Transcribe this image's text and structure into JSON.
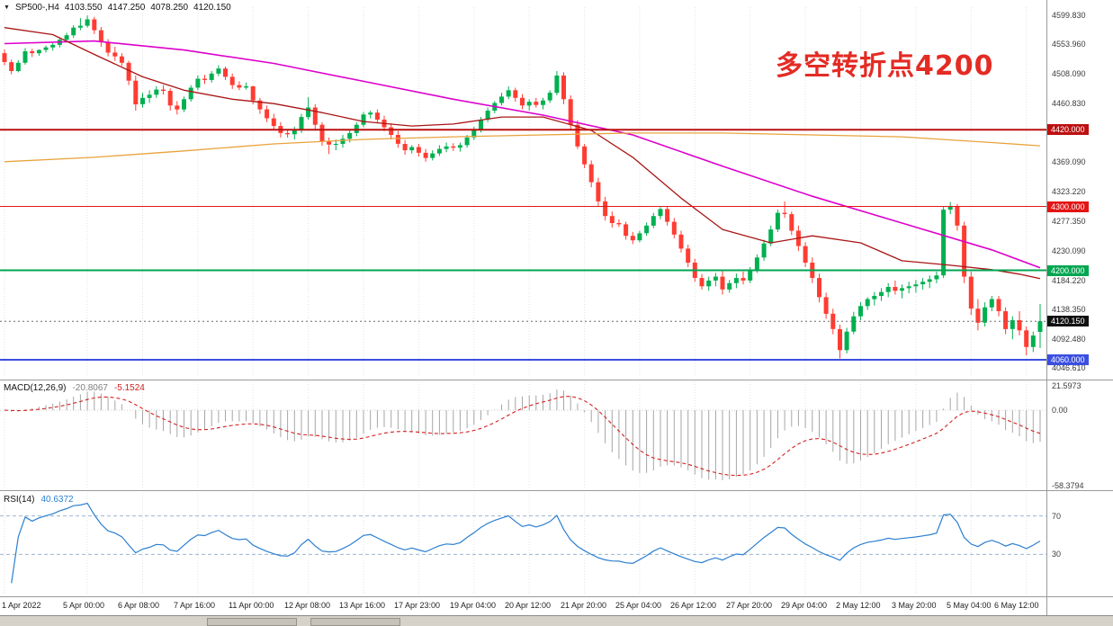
{
  "header": {
    "dropdown_icon": "▼",
    "symbol": "SP500-,H4",
    "open": "4103.550",
    "high": "4147.250",
    "low": "4078.250",
    "close": "4120.150"
  },
  "annotation": {
    "text": "多空转折点4200",
    "color": "#e32b24"
  },
  "colors": {
    "candle_up": "#00b050",
    "candle_down": "#ff3c32",
    "macd_hist": "#a6a6a6",
    "macd_signal": "#d22020",
    "rsi_line": "#2b7fd0",
    "rsi_level": "#9db4cf",
    "grid": "#e3e3e3",
    "current_price_line": "#6a6a6a"
  },
  "price_axis": {
    "ticks": [
      "4599.830",
      "4553.960",
      "4508.090",
      "4460.830",
      "4369.090",
      "4323.220",
      "4277.350",
      "4230.090",
      "4184.220",
      "4138.350",
      "4092.480",
      "4046.610"
    ],
    "current": {
      "label": "4120.150",
      "bg": "#101010"
    }
  },
  "panels": {
    "macd": {
      "title": "MACD(12,26,9)",
      "value_main": "-20.8067",
      "value_signal": "-5.1524",
      "axis_top": "21.5973",
      "axis_zero": "0.00",
      "axis_bottom": "-58.3794"
    },
    "rsi": {
      "title": "RSI(14)",
      "value": "40.6372",
      "level_labels": [
        "70",
        "30"
      ]
    }
  },
  "chart_data": {
    "type": "candlestick",
    "symbol": "SP500",
    "timeframe": "H4",
    "title": "SP500-,H4",
    "last_ohlc": {
      "open": 4103.55,
      "high": 4147.25,
      "low": 4078.25,
      "close": 4120.15
    },
    "price_range": [
      4036,
      4612
    ],
    "current_price": 4120.15,
    "candles": [
      [
        4540,
        4546,
        4521,
        4526
      ],
      [
        4526,
        4530,
        4507,
        4512
      ],
      [
        4512,
        4529,
        4510,
        4525
      ],
      [
        4525,
        4548,
        4522,
        4543
      ],
      [
        4543,
        4547,
        4534,
        4540
      ],
      [
        4540,
        4546,
        4536,
        4545
      ],
      [
        4545,
        4552,
        4541,
        4549
      ],
      [
        4549,
        4556,
        4544,
        4553
      ],
      [
        4553,
        4565,
        4549,
        4561
      ],
      [
        4561,
        4572,
        4557,
        4568
      ],
      [
        4568,
        4584,
        4564,
        4580
      ],
      [
        4580,
        4595,
        4576,
        4583
      ],
      [
        4583,
        4599,
        4580,
        4593
      ],
      [
        4593,
        4597,
        4570,
        4576
      ],
      [
        4576,
        4581,
        4550,
        4557
      ],
      [
        4557,
        4562,
        4535,
        4541
      ],
      [
        4541,
        4550,
        4528,
        4535
      ],
      [
        4535,
        4540,
        4520,
        4525
      ],
      [
        4525,
        4528,
        4490,
        4497
      ],
      [
        4497,
        4505,
        4450,
        4460
      ],
      [
        4460,
        4478,
        4455,
        4470
      ],
      [
        4470,
        4482,
        4462,
        4475
      ],
      [
        4475,
        4488,
        4470,
        4483
      ],
      [
        4483,
        4490,
        4475,
        4481
      ],
      [
        4481,
        4485,
        4450,
        4458
      ],
      [
        4458,
        4465,
        4444,
        4452
      ],
      [
        4452,
        4472,
        4448,
        4468
      ],
      [
        4468,
        4490,
        4464,
        4486
      ],
      [
        4486,
        4505,
        4482,
        4500
      ],
      [
        4500,
        4506,
        4492,
        4498
      ],
      [
        4498,
        4512,
        4494,
        4508
      ],
      [
        4508,
        4521,
        4504,
        4516
      ],
      [
        4516,
        4519,
        4498,
        4503
      ],
      [
        4503,
        4508,
        4484,
        4490
      ],
      [
        4490,
        4496,
        4482,
        4486
      ],
      [
        4486,
        4494,
        4483,
        4488
      ],
      [
        4488,
        4489,
        4460,
        4466
      ],
      [
        4466,
        4470,
        4445,
        4452
      ],
      [
        4452,
        4458,
        4432,
        4438
      ],
      [
        4438,
        4445,
        4420,
        4426
      ],
      [
        4426,
        4432,
        4408,
        4415
      ],
      [
        4415,
        4420,
        4408,
        4413
      ],
      [
        4413,
        4425,
        4405,
        4420
      ],
      [
        4420,
        4445,
        4415,
        4440
      ],
      [
        4440,
        4471,
        4436,
        4455
      ],
      [
        4455,
        4460,
        4420,
        4428
      ],
      [
        4428,
        4432,
        4395,
        4402
      ],
      [
        4402,
        4408,
        4382,
        4397
      ],
      [
        4397,
        4405,
        4388,
        4398
      ],
      [
        4398,
        4412,
        4392,
        4406
      ],
      [
        4406,
        4420,
        4400,
        4415
      ],
      [
        4415,
        4432,
        4410,
        4428
      ],
      [
        4428,
        4448,
        4424,
        4444
      ],
      [
        4444,
        4450,
        4438,
        4447
      ],
      [
        4447,
        4452,
        4430,
        4436
      ],
      [
        4436,
        4442,
        4418,
        4424
      ],
      [
        4424,
        4430,
        4405,
        4412
      ],
      [
        4412,
        4418,
        4392,
        4398
      ],
      [
        4398,
        4404,
        4381,
        4388
      ],
      [
        4388,
        4396,
        4383,
        4393
      ],
      [
        4393,
        4398,
        4378,
        4384
      ],
      [
        4384,
        4390,
        4370,
        4376
      ],
      [
        4376,
        4388,
        4372,
        4383
      ],
      [
        4383,
        4396,
        4379,
        4390
      ],
      [
        4390,
        4400,
        4385,
        4394
      ],
      [
        4394,
        4399,
        4387,
        4392
      ],
      [
        4392,
        4400,
        4386,
        4396
      ],
      [
        4396,
        4412,
        4392,
        4408
      ],
      [
        4408,
        4425,
        4404,
        4420
      ],
      [
        4420,
        4440,
        4416,
        4436
      ],
      [
        4436,
        4455,
        4432,
        4450
      ],
      [
        4450,
        4465,
        4446,
        4462
      ],
      [
        4462,
        4478,
        4458,
        4472
      ],
      [
        4472,
        4488,
        4468,
        4482
      ],
      [
        4482,
        4486,
        4464,
        4470
      ],
      [
        4470,
        4476,
        4452,
        4458
      ],
      [
        4458,
        4468,
        4450,
        4464
      ],
      [
        4464,
        4470,
        4455,
        4459
      ],
      [
        4459,
        4470,
        4452,
        4466
      ],
      [
        4466,
        4482,
        4462,
        4478
      ],
      [
        4478,
        4512,
        4474,
        4505
      ],
      [
        4505,
        4510,
        4460,
        4468
      ],
      [
        4468,
        4474,
        4420,
        4428
      ],
      [
        4428,
        4435,
        4390,
        4394
      ],
      [
        4394,
        4398,
        4360,
        4366
      ],
      [
        4366,
        4372,
        4330,
        4338
      ],
      [
        4338,
        4345,
        4300,
        4308
      ],
      [
        4308,
        4315,
        4278,
        4285
      ],
      [
        4285,
        4292,
        4267,
        4274
      ],
      [
        4274,
        4280,
        4268,
        4272
      ],
      [
        4272,
        4276,
        4248,
        4254
      ],
      [
        4254,
        4260,
        4241,
        4247
      ],
      [
        4247,
        4262,
        4244,
        4258
      ],
      [
        4258,
        4275,
        4254,
        4270
      ],
      [
        4270,
        4290,
        4266,
        4285
      ],
      [
        4285,
        4299,
        4280,
        4296
      ],
      [
        4296,
        4300,
        4270,
        4276
      ],
      [
        4276,
        4282,
        4250,
        4256
      ],
      [
        4256,
        4262,
        4228,
        4234
      ],
      [
        4234,
        4240,
        4205,
        4212
      ],
      [
        4212,
        4218,
        4182,
        4188
      ],
      [
        4188,
        4194,
        4170,
        4175
      ],
      [
        4175,
        4190,
        4168,
        4184
      ],
      [
        4184,
        4196,
        4175,
        4190
      ],
      [
        4190,
        4200,
        4162,
        4170
      ],
      [
        4170,
        4185,
        4165,
        4180
      ],
      [
        4180,
        4195,
        4172,
        4188
      ],
      [
        4188,
        4198,
        4178,
        4184
      ],
      [
        4184,
        4205,
        4180,
        4200
      ],
      [
        4200,
        4225,
        4196,
        4220
      ],
      [
        4220,
        4248,
        4215,
        4242
      ],
      [
        4242,
        4270,
        4238,
        4264
      ],
      [
        4264,
        4295,
        4260,
        4290
      ],
      [
        4290,
        4308,
        4282,
        4288
      ],
      [
        4288,
        4292,
        4255,
        4262
      ],
      [
        4262,
        4270,
        4230,
        4238
      ],
      [
        4238,
        4244,
        4205,
        4212
      ],
      [
        4212,
        4220,
        4180,
        4188
      ],
      [
        4188,
        4195,
        4150,
        4158
      ],
      [
        4158,
        4165,
        4124,
        4132
      ],
      [
        4132,
        4140,
        4100,
        4108
      ],
      [
        4108,
        4115,
        4062,
        4075
      ],
      [
        4075,
        4110,
        4070,
        4104
      ],
      [
        4104,
        4135,
        4100,
        4128
      ],
      [
        4128,
        4150,
        4122,
        4144
      ],
      [
        4144,
        4158,
        4138,
        4155
      ],
      [
        4155,
        4166,
        4145,
        4160
      ],
      [
        4160,
        4172,
        4152,
        4166
      ],
      [
        4166,
        4180,
        4158,
        4174
      ],
      [
        4174,
        4184,
        4162,
        4168
      ],
      [
        4168,
        4178,
        4156,
        4172
      ],
      [
        4172,
        4182,
        4164,
        4175
      ],
      [
        4175,
        4185,
        4165,
        4178
      ],
      [
        4178,
        4188,
        4170,
        4182
      ],
      [
        4182,
        4192,
        4172,
        4186
      ],
      [
        4186,
        4198,
        4180,
        4192
      ],
      [
        4192,
        4300,
        4188,
        4295
      ],
      [
        4295,
        4307,
        4288,
        4300
      ],
      [
        4300,
        4304,
        4262,
        4270
      ],
      [
        4270,
        4276,
        4180,
        4190
      ],
      [
        4190,
        4198,
        4130,
        4140
      ],
      [
        4140,
        4155,
        4106,
        4118
      ],
      [
        4118,
        4150,
        4112,
        4142
      ],
      [
        4142,
        4160,
        4136,
        4155
      ],
      [
        4155,
        4160,
        4128,
        4136
      ],
      [
        4136,
        4142,
        4100,
        4108
      ],
      [
        4108,
        4128,
        4092,
        4122
      ],
      [
        4122,
        4136,
        4098,
        4106
      ],
      [
        4106,
        4112,
        4067,
        4080
      ],
      [
        4080,
        4104,
        4072,
        4098
      ],
      [
        4103.55,
        4147.25,
        4078.25,
        4120.15
      ]
    ],
    "ma_lines": [
      {
        "name": "slow-magenta",
        "color": "#dd00cc",
        "width": 1.6,
        "points": [
          [
            0,
            4555
          ],
          [
            13,
            4559
          ],
          [
            26,
            4545
          ],
          [
            39,
            4524
          ],
          [
            52,
            4496
          ],
          [
            65,
            4468
          ],
          [
            78,
            4443
          ],
          [
            91,
            4412
          ],
          [
            104,
            4363
          ],
          [
            117,
            4316
          ],
          [
            130,
            4274
          ],
          [
            143,
            4232
          ],
          [
            150,
            4204
          ]
        ]
      },
      {
        "name": "fast-darkred",
        "color": "#aa1515",
        "width": 1.3,
        "points": [
          [
            0,
            4580
          ],
          [
            7,
            4569
          ],
          [
            13,
            4538
          ],
          [
            20,
            4503
          ],
          [
            26,
            4482
          ],
          [
            33,
            4468
          ],
          [
            39,
            4461
          ],
          [
            46,
            4447
          ],
          [
            52,
            4433
          ],
          [
            59,
            4426
          ],
          [
            65,
            4429
          ],
          [
            72,
            4440
          ],
          [
            78,
            4440
          ],
          [
            85,
            4419
          ],
          [
            91,
            4377
          ],
          [
            98,
            4313
          ],
          [
            104,
            4264
          ],
          [
            111,
            4243
          ],
          [
            117,
            4254
          ],
          [
            124,
            4243
          ],
          [
            130,
            4215
          ],
          [
            137,
            4208
          ],
          [
            143,
            4201
          ],
          [
            147,
            4194
          ],
          [
            150,
            4187
          ]
        ]
      },
      {
        "name": "long-orange",
        "color": "#e8a33d",
        "width": 1.3,
        "points": [
          [
            0,
            4370
          ],
          [
            13,
            4377
          ],
          [
            26,
            4387
          ],
          [
            39,
            4398
          ],
          [
            52,
            4405
          ],
          [
            65,
            4409
          ],
          [
            78,
            4412
          ],
          [
            91,
            4415
          ],
          [
            104,
            4415
          ],
          [
            117,
            4412
          ],
          [
            130,
            4409
          ],
          [
            143,
            4400
          ],
          [
            150,
            4395
          ]
        ]
      }
    ],
    "hlines": [
      {
        "price": 4420.0,
        "label": "4420.000",
        "color": "#bb1111",
        "line_width": 2
      },
      {
        "price": 4300.0,
        "label": "4300.000",
        "color": "#e31515",
        "line_width": 1
      },
      {
        "price": 4200.0,
        "label": "4200.000",
        "color": "#00a651",
        "line_width": 2
      },
      {
        "price": 4060.0,
        "label": "4060.000",
        "color": "#3b4fe0",
        "line_width": 2
      }
    ],
    "time_axis": {
      "labels": [
        "1 Apr 2022",
        "5 Apr 00:00",
        "6 Apr 08:00",
        "7 Apr 16:00",
        "11 Apr 00:00",
        "12 Apr 08:00",
        "13 Apr 16:00",
        "17 Apr 23:00",
        "19 Apr 04:00",
        "20 Apr 12:00",
        "21 Apr 20:00",
        "25 Apr 04:00",
        "26 Apr 12:00",
        "27 Apr 20:00",
        "29 Apr 04:00",
        "2 May 12:00",
        "3 May 20:00",
        "5 May 04:00",
        "6 May 12:00"
      ],
      "indices": [
        0,
        12,
        20,
        28,
        36,
        44,
        52,
        60,
        68,
        76,
        84,
        92,
        100,
        108,
        116,
        124,
        132,
        140,
        148
      ]
    },
    "macd": {
      "fast": 12,
      "slow": 26,
      "signal": 9
    },
    "rsi": {
      "period": 14,
      "levels": [
        70,
        30
      ]
    }
  }
}
